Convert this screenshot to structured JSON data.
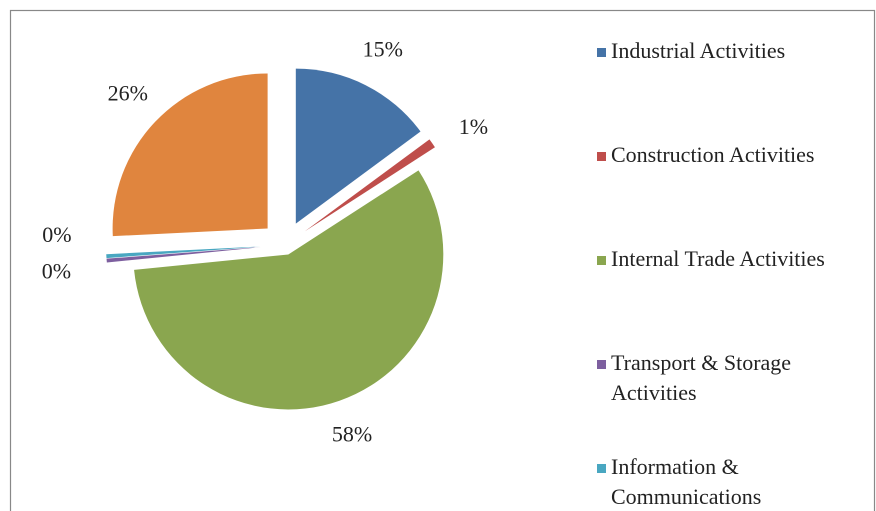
{
  "chart_data": {
    "type": "pie",
    "categories": [
      "Industrial Activities",
      "Construction Activities",
      "Internal Trade Activities",
      "Transport & Storage Activities",
      "Information & Communications",
      null
    ],
    "values": [
      15,
      1,
      58,
      0.4,
      0.4,
      26
    ],
    "value_labels": [
      "15%",
      "1%",
      "58%",
      "0%",
      "0%",
      "26%"
    ],
    "colors": [
      "#4573a7",
      "#bf4e4b",
      "#8aa64f",
      "#7d5f9f",
      "#49a7c1",
      "#e0853e"
    ],
    "exploded": true,
    "legend": "right"
  }
}
